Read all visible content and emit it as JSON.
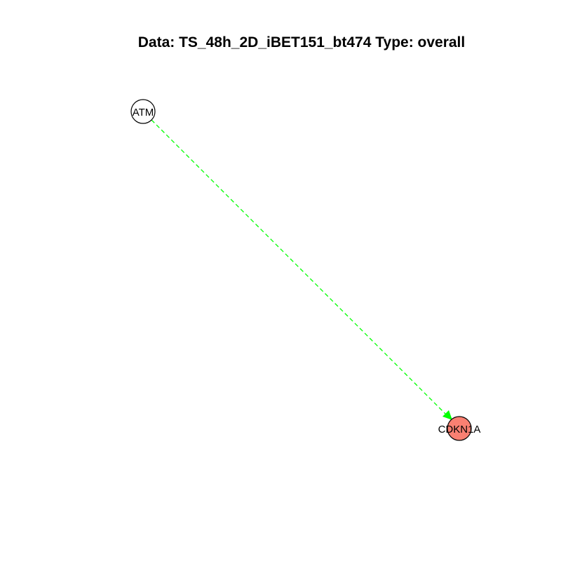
{
  "title": "Data: TS_48h_2D_iBET151_bt474 Type: overall",
  "nodes": [
    {
      "id": "ATM",
      "label": "ATM",
      "fill": "#ffffff"
    },
    {
      "id": "CDKN1A",
      "label": "CDKN1A",
      "fill": "#fa8072"
    }
  ],
  "edges": [
    {
      "source": "ATM",
      "target": "CDKN1A",
      "color": "#00ff00",
      "style": "dashed",
      "directed": true
    }
  ]
}
